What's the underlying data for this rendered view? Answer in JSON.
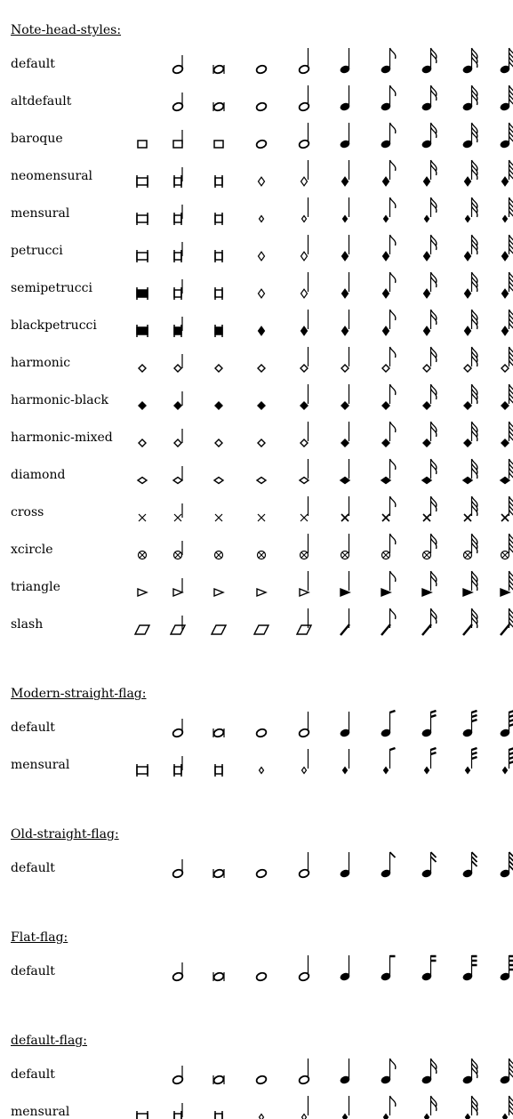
{
  "sections": [
    {
      "title": "Note-head-styles:",
      "flag": "curved",
      "rows": [
        {
          "label": "default",
          "style": "default",
          "has_maxima": false
        },
        {
          "label": "altdefault",
          "style": "altdefault",
          "has_maxima": false
        },
        {
          "label": "baroque",
          "style": "baroque",
          "has_maxima": true
        },
        {
          "label": "neomensural",
          "style": "neomensural",
          "has_maxima": true
        },
        {
          "label": "mensural",
          "style": "mensural",
          "has_maxima": true
        },
        {
          "label": "petrucci",
          "style": "petrucci",
          "has_maxima": true
        },
        {
          "label": "semipetrucci",
          "style": "semipetrucci",
          "has_maxima": true
        },
        {
          "label": "blackpetrucci",
          "style": "blackpetrucci",
          "has_maxima": true
        },
        {
          "label": "harmonic",
          "style": "harmonic",
          "has_maxima": true
        },
        {
          "label": "harmonic-black",
          "style": "harmonic-black",
          "has_maxima": true
        },
        {
          "label": "harmonic-mixed",
          "style": "harmonic-mixed",
          "has_maxima": true
        },
        {
          "label": "diamond",
          "style": "diamond",
          "has_maxima": true
        },
        {
          "label": "cross",
          "style": "cross",
          "has_maxima": true
        },
        {
          "label": "xcircle",
          "style": "xcircle",
          "has_maxima": true
        },
        {
          "label": "triangle",
          "style": "triangle",
          "has_maxima": true
        },
        {
          "label": "slash",
          "style": "slash",
          "has_maxima": true
        }
      ]
    },
    {
      "title": "Modern-straight-flag:",
      "flag": "modern-straight",
      "rows": [
        {
          "label": "default",
          "style": "default",
          "has_maxima": false
        },
        {
          "label": "mensural",
          "style": "mensural",
          "has_maxima": true
        }
      ]
    },
    {
      "title": "Old-straight-flag:",
      "flag": "old-straight",
      "rows": [
        {
          "label": "default",
          "style": "default",
          "has_maxima": false
        }
      ]
    },
    {
      "title": "Flat-flag:",
      "flag": "flat",
      "rows": [
        {
          "label": "default",
          "style": "default",
          "has_maxima": false
        }
      ]
    },
    {
      "title": "default-flag:",
      "flag": "curved",
      "rows": [
        {
          "label": "default",
          "style": "default",
          "has_maxima": false
        },
        {
          "label": "mensural",
          "style": "mensural",
          "has_maxima": true
        }
      ]
    }
  ],
  "durations": [
    "maxima",
    "longa",
    "breve",
    "whole",
    "half",
    "quarter",
    "eighth",
    "sixteenth",
    "thirty-second",
    "sixty-fourth"
  ]
}
